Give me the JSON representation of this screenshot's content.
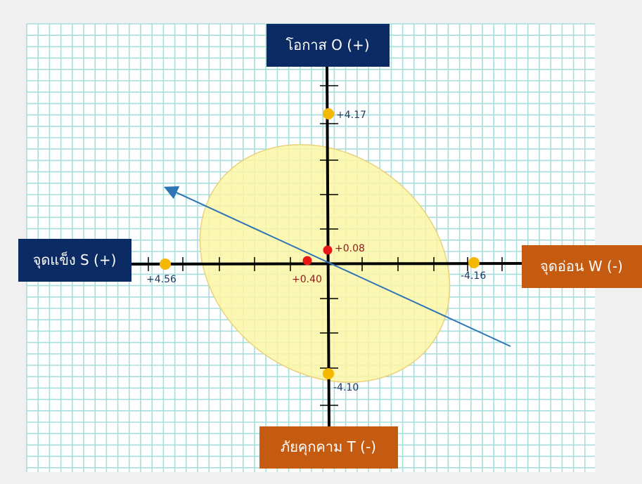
{
  "quadrant_labels": {
    "top": "โอกาส O (+)",
    "bottom": "ภัยคุกคาม T (-)",
    "left": "จุดแข็ง S (+)",
    "right": "จุดอ่อน W (-)"
  },
  "colors": {
    "page_bg": "#f0f0f0",
    "grid_bg": "#ffffff",
    "grid_line": "#a8dedc",
    "axis": "#000000",
    "navy_box": "#0c2a63",
    "orange_box": "#c55a11",
    "ellipse_fill": "#fbf6a4",
    "ellipse_stroke": "#ead27a",
    "yellow_point": "#f5b800",
    "red_point": "#e81818",
    "vector_line": "#2e75b6"
  },
  "chart_data": {
    "type": "scatter",
    "axes": {
      "x_positive_side": "left",
      "y_positive_side": "top"
    },
    "points": [
      {
        "label": "+4.17",
        "axis": "O",
        "value": 4.17,
        "color": "yellow"
      },
      {
        "label": "-4.10",
        "axis": "T",
        "value": -4.1,
        "color": "yellow"
      },
      {
        "label": "+4.56",
        "axis": "S",
        "value": 4.56,
        "color": "yellow"
      },
      {
        "label": "-4.16",
        "axis": "W",
        "value": -4.16,
        "color": "yellow"
      },
      {
        "label": "+0.08",
        "axis": "O-T net",
        "value": 0.08,
        "color": "red"
      },
      {
        "label": "+0.40",
        "axis": "S-W net",
        "value": 0.4,
        "color": "red"
      }
    ],
    "grid": true,
    "legend": "none"
  }
}
